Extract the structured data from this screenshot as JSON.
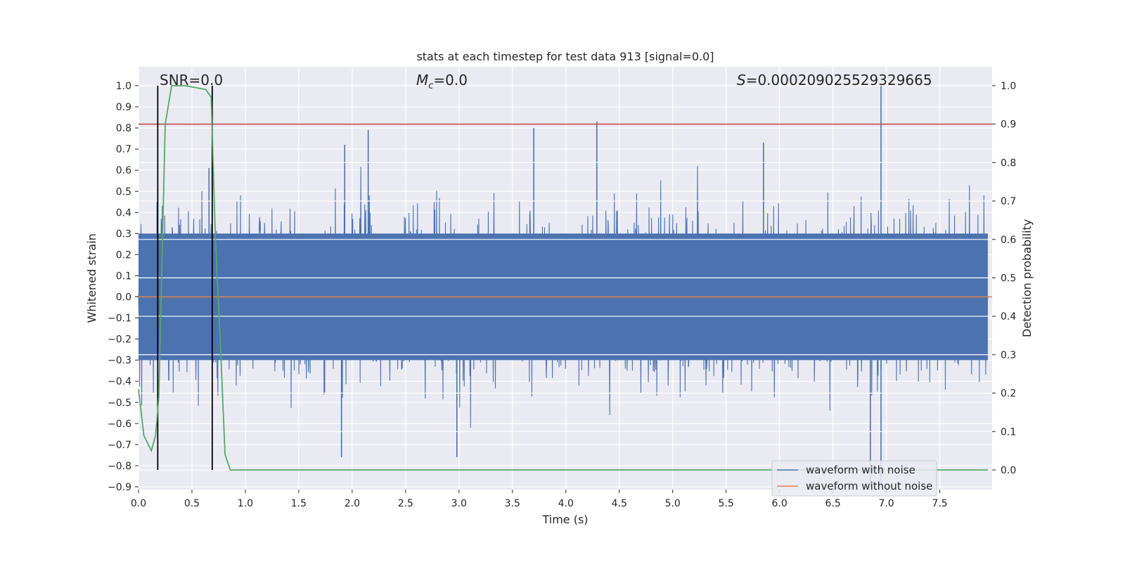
{
  "chart_data": {
    "type": "line",
    "title": "stats at each timestep for test data 913 [signal=0.0]",
    "xlabel": "Time (s)",
    "ylabel": "Whitened strain",
    "ylabel_right": "Detection probability",
    "xlim": [
      0.0,
      7.99
    ],
    "ylim": [
      -0.9,
      1.0
    ],
    "ylim_right": [
      0.0,
      1.0
    ],
    "x_ticks": [
      "0.0",
      "0.5",
      "1.0",
      "1.5",
      "2.0",
      "2.5",
      "3.0",
      "3.5",
      "4.0",
      "4.5",
      "5.0",
      "5.5",
      "6.0",
      "6.5",
      "7.0",
      "7.5"
    ],
    "y_ticks": [
      "1.0",
      "0.9",
      "0.8",
      "0.7",
      "0.6",
      "0.5",
      "0.4",
      "0.3",
      "0.2",
      "0.1",
      "0.0",
      "−0.1",
      "−0.2",
      "−0.3",
      "−0.4",
      "−0.5",
      "−0.6",
      "−0.7",
      "−0.8",
      "−0.9"
    ],
    "y_ticks_right": [
      "1.0",
      "0.9",
      "0.8",
      "0.7",
      "0.6",
      "0.5",
      "0.4",
      "0.3",
      "0.2",
      "0.1",
      "0.0"
    ],
    "grid": true,
    "legend_position": "lower-right",
    "annotations": {
      "snr": "SNR=0.0",
      "mc_symbol": "M",
      "mc_sub": "c",
      "mc_value": "=0.0",
      "s_symbol": "S",
      "s_value": "=0.000209025529329665"
    },
    "threshold_right": 0.9,
    "markers_x": [
      0.18,
      0.69
    ],
    "series": [
      {
        "name": "waveform with noise",
        "color": "#4c72b0",
        "envelope_upper_typical": 0.3,
        "envelope_lower_typical": -0.3,
        "peaks": [
          {
            "x": 2.15,
            "y": 0.79
          },
          {
            "x": 3.7,
            "y": 0.8
          },
          {
            "x": 4.29,
            "y": 0.83
          },
          {
            "x": 6.95,
            "y": 1.0
          },
          {
            "x": 1.93,
            "y": 0.72
          },
          {
            "x": 5.85,
            "y": 0.73
          },
          {
            "x": 0.66,
            "y": 0.61
          },
          {
            "x": 1.9,
            "y": -0.76
          },
          {
            "x": 2.98,
            "y": -0.76
          },
          {
            "x": 6.85,
            "y": -0.9
          },
          {
            "x": 6.95,
            "y": -0.9
          }
        ]
      },
      {
        "name": "waveform without noise",
        "color": "#dd8452",
        "values_constant": 0.0
      },
      {
        "name": "detection probability",
        "color": "#55a868",
        "axis": "right",
        "x": [
          0.0,
          0.05,
          0.12,
          0.16,
          0.19,
          0.25,
          0.31,
          0.44,
          0.63,
          0.68,
          0.72,
          0.76,
          0.81,
          0.86,
          0.88,
          2.0,
          4.0,
          6.0,
          7.95
        ],
        "y": [
          0.21,
          0.09,
          0.05,
          0.09,
          0.19,
          0.9,
          1.0,
          1.0,
          0.99,
          0.97,
          0.6,
          0.37,
          0.04,
          0.0,
          0.0,
          0.0,
          0.0,
          0.0,
          0.0
        ]
      }
    ]
  }
}
